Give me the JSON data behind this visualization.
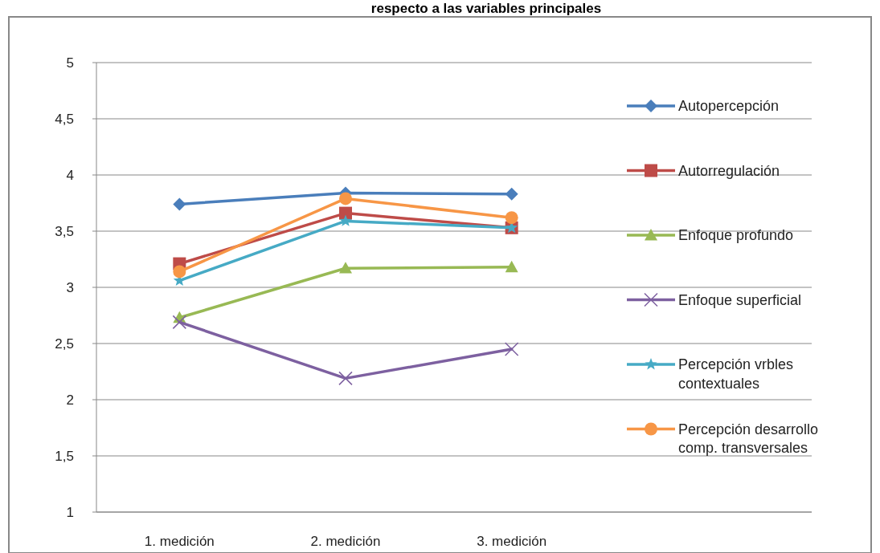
{
  "chart_data": {
    "type": "line",
    "title": "respecto a las variables principales",
    "categories": [
      "1. medición",
      "2. medición",
      "3. medición"
    ],
    "series": [
      {
        "name": "Autopercepción",
        "color": "#4a7ebb",
        "marker": "diamond",
        "values": [
          3.74,
          3.84,
          3.83
        ]
      },
      {
        "name": "Autorregulación",
        "color": "#be4b48",
        "marker": "square",
        "values": [
          3.21,
          3.66,
          3.53
        ]
      },
      {
        "name": "Enfoque profundo",
        "color": "#98b954",
        "marker": "triangle",
        "values": [
          2.73,
          3.17,
          3.18
        ]
      },
      {
        "name": "Enfoque superficial",
        "color": "#7d60a0",
        "marker": "cross",
        "values": [
          2.69,
          2.19,
          2.45
        ]
      },
      {
        "name": "Percepción vrbles contextuales",
        "color": "#46aac5",
        "marker": "star",
        "values": [
          3.06,
          3.59,
          3.53
        ]
      },
      {
        "name": "Percepción desarrollo comp. transversales",
        "color": "#f79646",
        "marker": "circle",
        "values": [
          3.14,
          3.79,
          3.62
        ]
      }
    ],
    "ylim": [
      1,
      5
    ],
    "yticks": [
      {
        "value": 1,
        "label": "1"
      },
      {
        "value": 1.5,
        "label": "1,5"
      },
      {
        "value": 2,
        "label": "2"
      },
      {
        "value": 2.5,
        "label": "2,5"
      },
      {
        "value": 3,
        "label": "3"
      },
      {
        "value": 3.5,
        "label": "3,5"
      },
      {
        "value": 4,
        "label": "4"
      },
      {
        "value": 4.5,
        "label": "4,5"
      },
      {
        "value": 5,
        "label": "5"
      }
    ],
    "grid": "y",
    "legend": "right"
  }
}
